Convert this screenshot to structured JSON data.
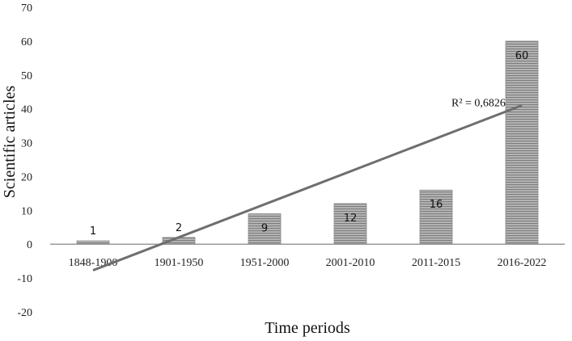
{
  "chart_data": {
    "type": "bar",
    "categories": [
      "1848-1900",
      "1901-1950",
      "1951-2000",
      "2001-2010",
      "2011-2015",
      "2016-2022"
    ],
    "values": [
      1,
      2,
      9,
      12,
      16,
      60
    ],
    "data_labels": [
      "1",
      "2",
      "9",
      "12",
      "16",
      "60"
    ],
    "xlabel": "Time periods",
    "ylabel": "Scientific articles",
    "ylim": [
      -20,
      70
    ],
    "yticks": [
      -20,
      -10,
      0,
      10,
      20,
      30,
      40,
      50,
      60,
      70
    ],
    "grid": false,
    "legend": "none",
    "bar_color": "#8c8c8c",
    "bar_stripe_color": "#b5b5b5",
    "trendline": {
      "type": "linear",
      "label": "R² = 0,6826",
      "start_value": -7.7,
      "end_value": 41.0,
      "color": "#6e6e6e"
    }
  }
}
